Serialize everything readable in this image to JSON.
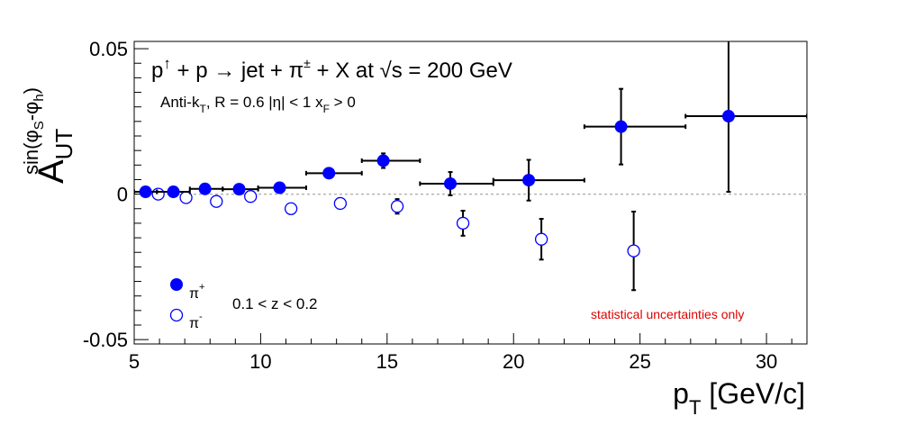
{
  "chart_data": {
    "type": "scatter",
    "title_parts": {
      "main_1": "p",
      "arrow_up": "↑",
      "main_2": " + p ",
      "rarrow": "→",
      "main_3": " jet + π",
      "pm": "±",
      "main_4": " + X at  ",
      "sqrt": "√",
      "main_5": "s = 200 GeV"
    },
    "subtitle_parts": {
      "a": "Anti-k",
      "a_sub": "T",
      "b": ", R = 0.6   |η| < 1   x",
      "b_sub": "F",
      "c": " > 0"
    },
    "xlabel_parts": {
      "main": "p",
      "sub": "T",
      "rest": " [GeV/c]"
    },
    "ylabel_parts": {
      "main": "A",
      "sub": "UT",
      "sup_prefix": "sin(φ",
      "sup_s": "S",
      "sup_mid": "-φ",
      "sup_h": "h",
      "sup_close": ")"
    },
    "xlim": [
      5,
      31.6
    ],
    "ylim": [
      -0.0515,
      0.0525
    ],
    "x_ticks": [
      {
        "value": 5,
        "label": "5"
      },
      {
        "value": 10,
        "label": "10"
      },
      {
        "value": 15,
        "label": "15"
      },
      {
        "value": 20,
        "label": "20"
      },
      {
        "value": 25,
        "label": "25"
      },
      {
        "value": 30,
        "label": "30"
      }
    ],
    "y_ticks": [
      {
        "value": 0.05,
        "label": "0.05"
      },
      {
        "value": 0,
        "label": "0"
      },
      {
        "value": -0.05,
        "label": "-0.05"
      }
    ],
    "zero_line": true,
    "legend": {
      "placement": "bottom-left",
      "pi_plus": {
        "main": "π",
        "sup": "+"
      },
      "pi_minus": {
        "main": "π",
        "sup": "-"
      },
      "z_range": "0.1 < z < 0.2"
    },
    "annotation": "statistical uncertainties only",
    "annotation_color": "#e00000",
    "marker_color": "#0000ff",
    "series": [
      {
        "name": "π+",
        "marker": "filled-circle",
        "points": [
          {
            "x": 5.45,
            "y": 0.0008,
            "xlo": 5.0,
            "xhi": 5.9,
            "err": 0.0008
          },
          {
            "x": 6.55,
            "y": 0.0008,
            "xlo": 5.9,
            "xhi": 7.2,
            "err": 0.0008
          },
          {
            "x": 7.8,
            "y": 0.0018,
            "xlo": 7.2,
            "xhi": 8.5,
            "err": 0.0008
          },
          {
            "x": 9.15,
            "y": 0.0017,
            "xlo": 8.5,
            "xhi": 9.9,
            "err": 0.0009
          },
          {
            "x": 10.75,
            "y": 0.0022,
            "xlo": 9.9,
            "xhi": 11.8,
            "err": 0.0012
          },
          {
            "x": 12.7,
            "y": 0.0072,
            "xlo": 11.8,
            "xhi": 14.0,
            "err": 0.0017
          },
          {
            "x": 14.85,
            "y": 0.0115,
            "xlo": 14.0,
            "xhi": 16.3,
            "err": 0.0025
          },
          {
            "x": 17.5,
            "y": 0.0036,
            "xlo": 16.3,
            "xhi": 19.2,
            "err": 0.004
          },
          {
            "x": 20.6,
            "y": 0.0048,
            "xlo": 19.2,
            "xhi": 22.8,
            "err": 0.007
          },
          {
            "x": 24.25,
            "y": 0.0232,
            "xlo": 22.8,
            "xhi": 26.8,
            "err": 0.013
          },
          {
            "x": 28.5,
            "y": 0.0268,
            "xlo": 26.8,
            "xhi": 31.6,
            "err": 0.026
          }
        ]
      },
      {
        "name": "π-",
        "marker": "open-circle",
        "points": [
          {
            "x": 5.95,
            "y": 0.0,
            "err": 0.0008
          },
          {
            "x": 7.05,
            "y": -0.0012,
            "err": 0.0008
          },
          {
            "x": 8.25,
            "y": -0.0025,
            "err": 0.0009
          },
          {
            "x": 9.6,
            "y": -0.0008,
            "err": 0.001
          },
          {
            "x": 11.2,
            "y": -0.005,
            "err": 0.0012
          },
          {
            "x": 13.15,
            "y": -0.0032,
            "err": 0.0017
          },
          {
            "x": 15.4,
            "y": -0.0042,
            "err": 0.0025
          },
          {
            "x": 18.0,
            "y": -0.01,
            "err": 0.0043
          },
          {
            "x": 21.1,
            "y": -0.0155,
            "err": 0.007
          },
          {
            "x": 24.75,
            "y": -0.0195,
            "err": 0.0135
          }
        ]
      }
    ]
  }
}
